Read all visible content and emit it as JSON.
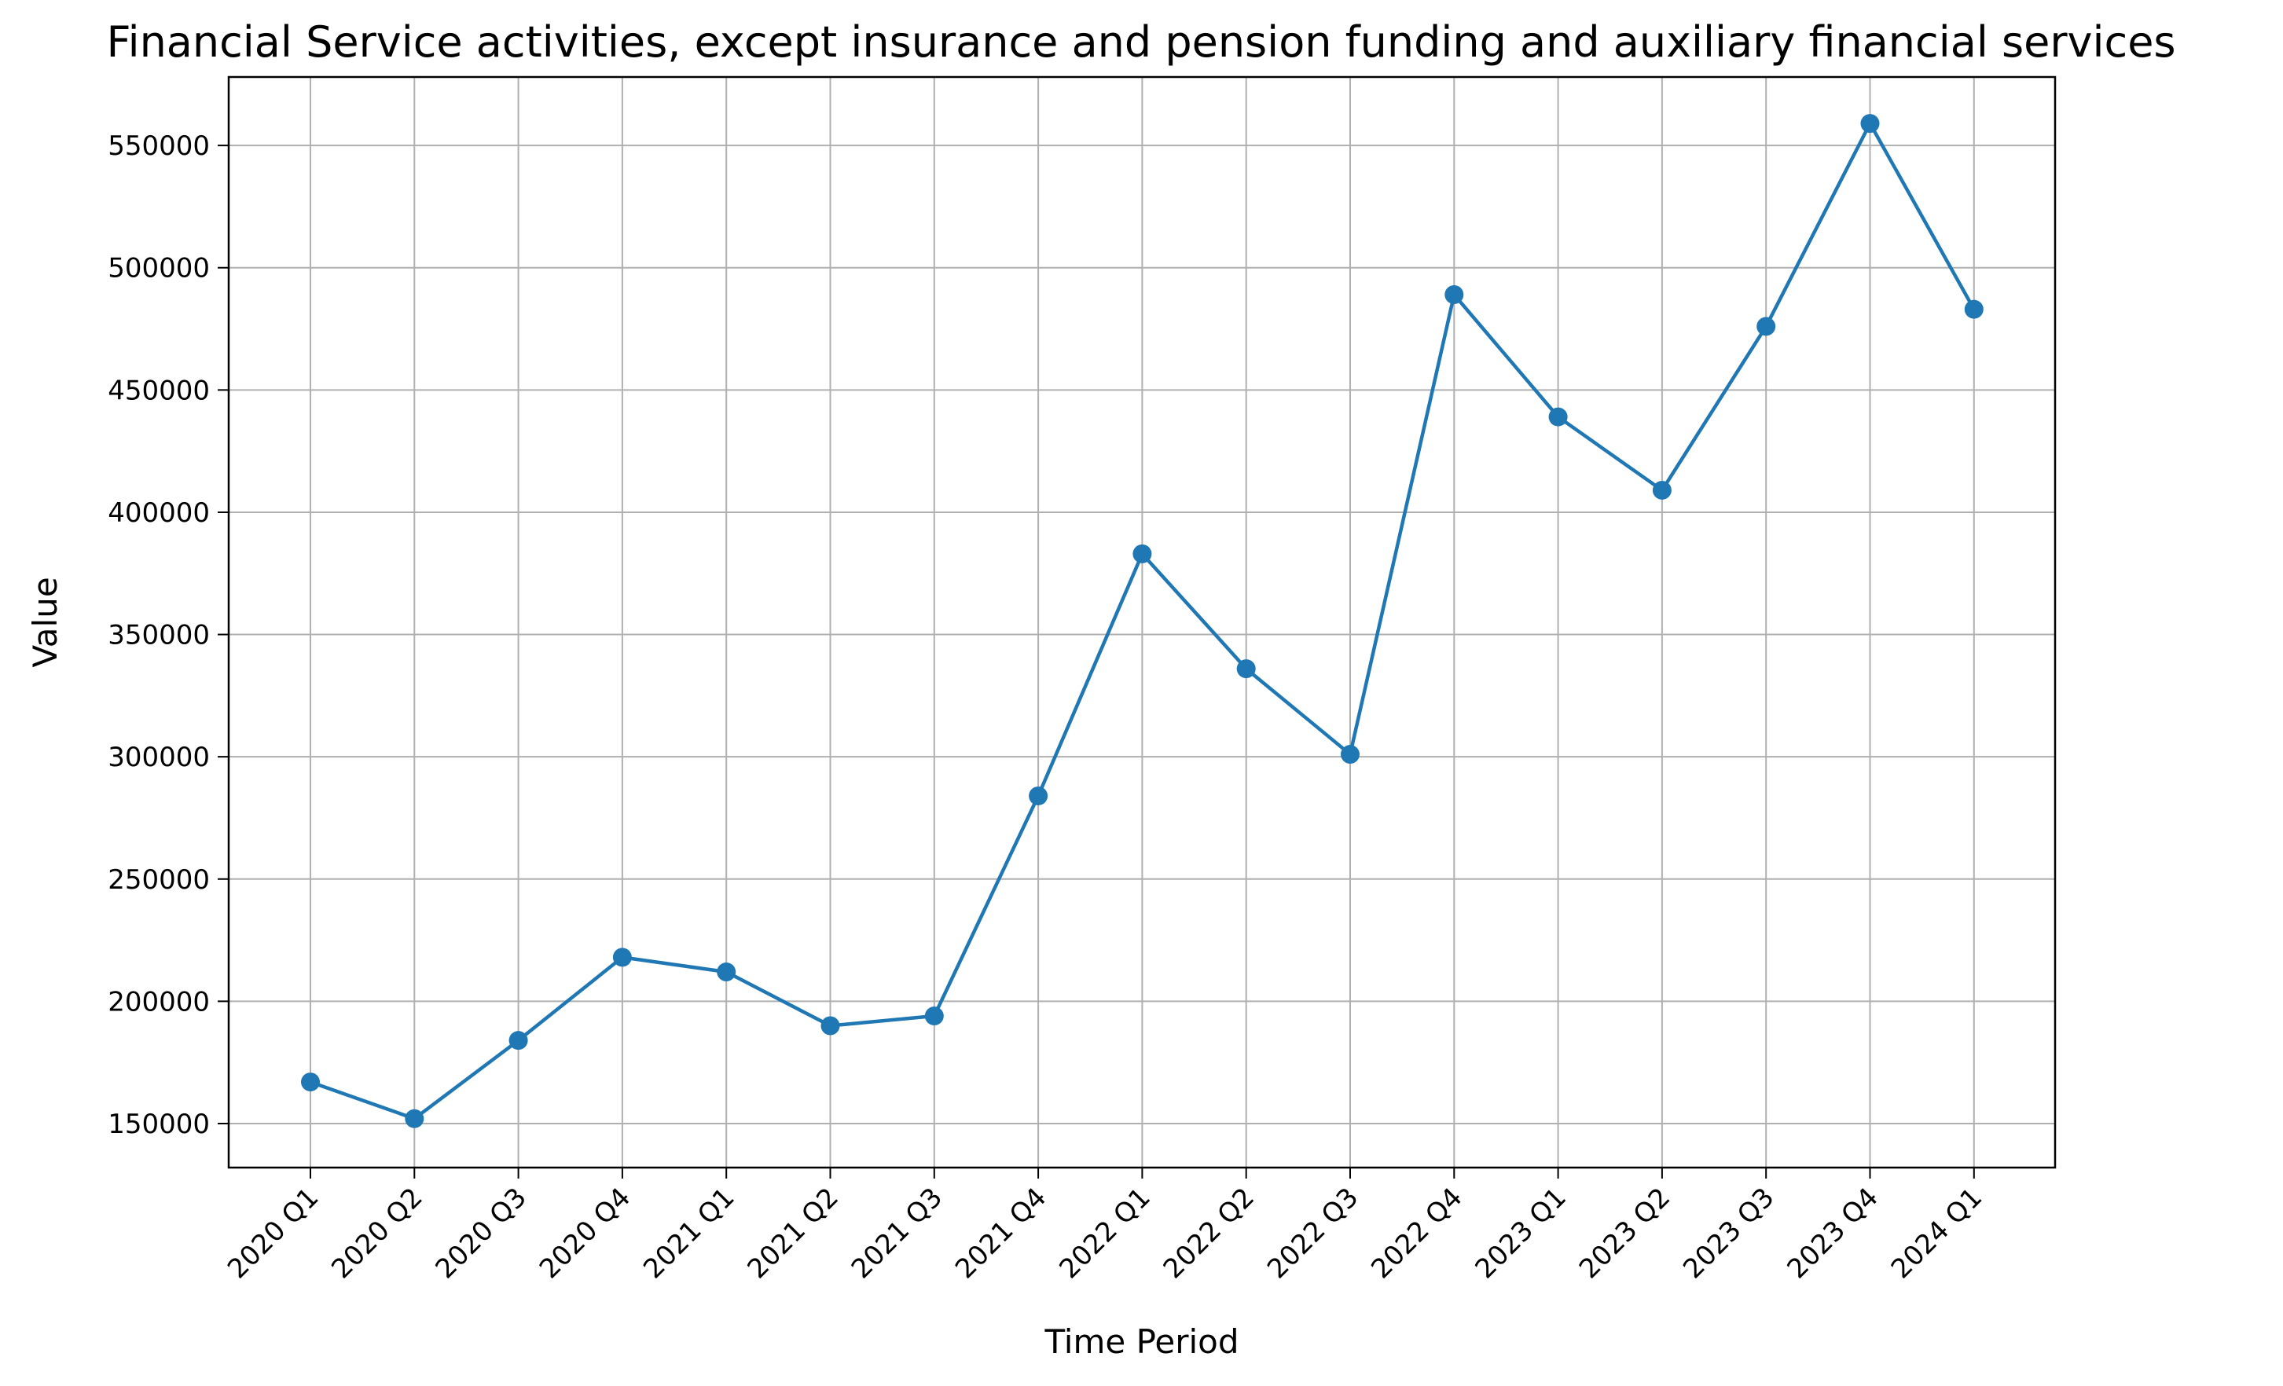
{
  "chart_data": {
    "type": "line",
    "title": "Financial Service activities, except insurance and pension funding and auxiliary financial services",
    "xlabel": "Time Period",
    "ylabel": "Value",
    "categories": [
      "2020 Q1",
      "2020 Q2",
      "2020 Q3",
      "2020 Q4",
      "2021 Q1",
      "2021 Q2",
      "2021 Q3",
      "2021 Q4",
      "2022 Q1",
      "2022 Q2",
      "2022 Q3",
      "2022 Q4",
      "2023 Q1",
      "2023 Q2",
      "2023 Q3",
      "2023 Q4",
      "2024 Q1"
    ],
    "series": [
      {
        "values": [
          167000,
          152000,
          184000,
          218000,
          212000,
          190000,
          194000,
          284000,
          383000,
          336000,
          301000,
          489000,
          439000,
          409000,
          476000,
          559000,
          483000
        ],
        "color": "#1f77b4",
        "marker": "circle"
      }
    ],
    "ylim": [
      132000,
      578000
    ],
    "yticks": [
      150000,
      200000,
      250000,
      300000,
      350000,
      400000,
      450000,
      500000,
      550000
    ],
    "grid": true,
    "legend": "none"
  }
}
